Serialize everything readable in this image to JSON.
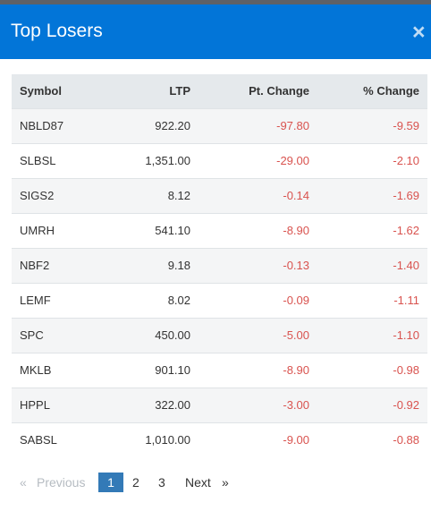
{
  "modal": {
    "title": "Top Losers",
    "close_glyph": "×"
  },
  "table": {
    "headers": [
      "Symbol",
      "LTP",
      "Pt. Change",
      "% Change"
    ],
    "rows": [
      {
        "symbol": "NBLD87",
        "ltp": "922.20",
        "pt_change": "-97.80",
        "pct_change": "-9.59"
      },
      {
        "symbol": "SLBSL",
        "ltp": "1,351.00",
        "pt_change": "-29.00",
        "pct_change": "-2.10"
      },
      {
        "symbol": "SIGS2",
        "ltp": "8.12",
        "pt_change": "-0.14",
        "pct_change": "-1.69"
      },
      {
        "symbol": "UMRH",
        "ltp": "541.10",
        "pt_change": "-8.90",
        "pct_change": "-1.62"
      },
      {
        "symbol": "NBF2",
        "ltp": "9.18",
        "pt_change": "-0.13",
        "pct_change": "-1.40"
      },
      {
        "symbol": "LEMF",
        "ltp": "8.02",
        "pt_change": "-0.09",
        "pct_change": "-1.11"
      },
      {
        "symbol": "SPC",
        "ltp": "450.00",
        "pt_change": "-5.00",
        "pct_change": "-1.10"
      },
      {
        "symbol": "MKLB",
        "ltp": "901.10",
        "pt_change": "-8.90",
        "pct_change": "-0.98"
      },
      {
        "symbol": "HPPL",
        "ltp": "322.00",
        "pt_change": "-3.00",
        "pct_change": "-0.92"
      },
      {
        "symbol": "SABSL",
        "ltp": "1,010.00",
        "pt_change": "-9.00",
        "pct_change": "-0.88"
      }
    ]
  },
  "pagination": {
    "prev_arrow": "«",
    "prev_label": "Previous",
    "pages": [
      "1",
      "2",
      "3"
    ],
    "current_page": "1",
    "next_label": "Next",
    "next_arrow": "»"
  },
  "colors": {
    "header_bg": "#0275d8",
    "negative": "#d9534f",
    "active_page": "#337ab7",
    "table_head_bg": "#e5e9ec"
  }
}
